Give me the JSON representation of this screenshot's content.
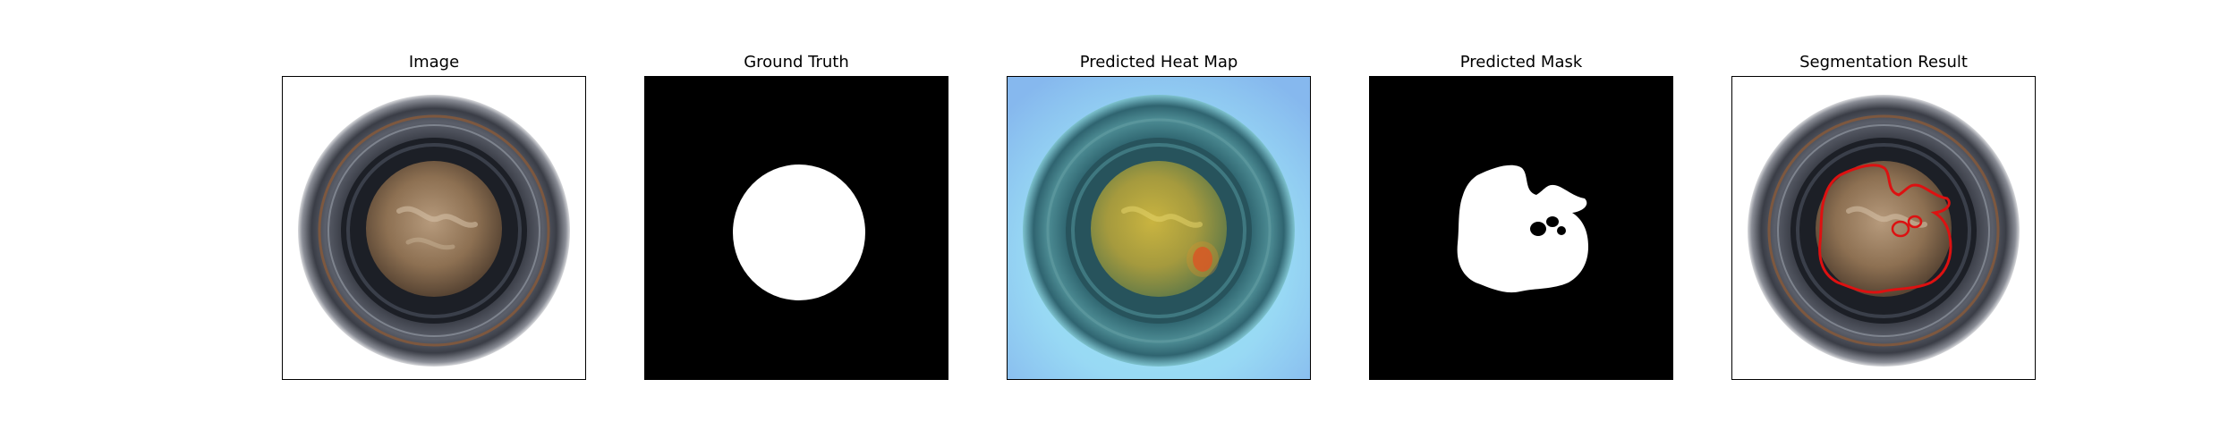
{
  "figure": {
    "background": "#ffffff",
    "panels": [
      {
        "id": "image",
        "title": "Image"
      },
      {
        "id": "ground-truth",
        "title": "Ground Truth"
      },
      {
        "id": "heat-map",
        "title": "Predicted Heat Map"
      },
      {
        "id": "mask",
        "title": "Predicted Mask"
      },
      {
        "id": "segmentation",
        "title": "Segmentation Result"
      }
    ],
    "colors": {
      "mask_foreground": "#ffffff",
      "mask_background": "#000000",
      "contour": "#dd1111",
      "heatmap_low": "#8ec6f2",
      "heatmap_high": "#d83a22"
    }
  }
}
